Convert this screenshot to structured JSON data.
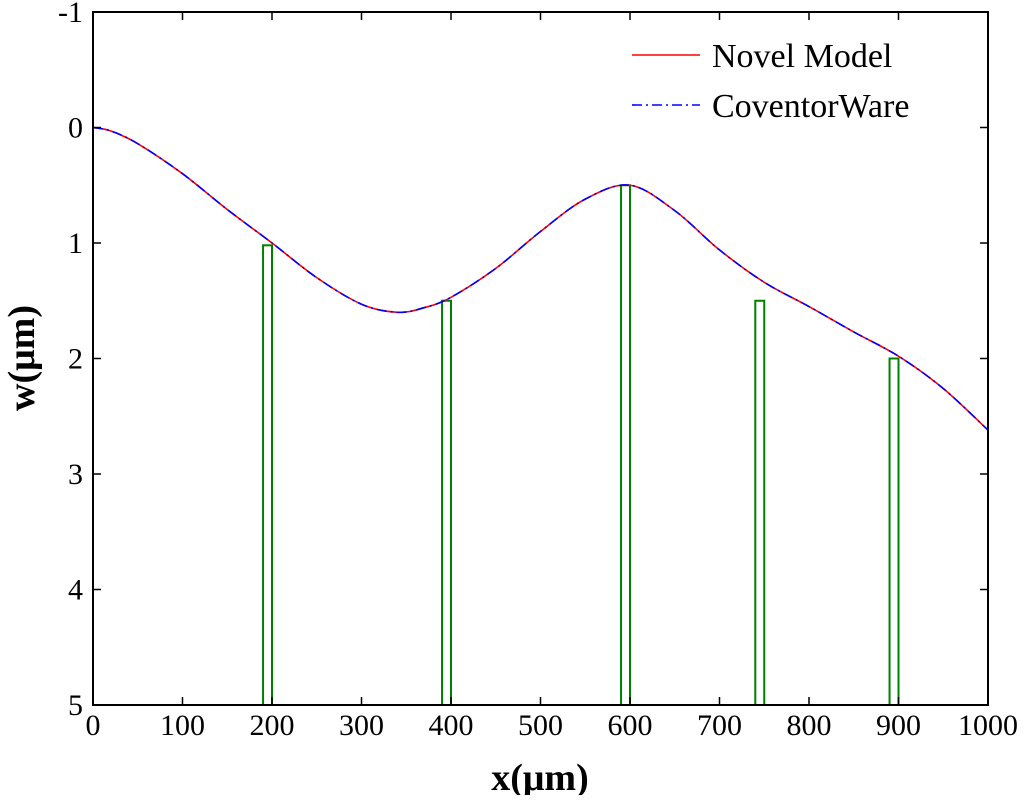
{
  "chart_data": {
    "type": "line",
    "title": "",
    "xlabel": "x(μm)",
    "ylabel": "w(μm)",
    "xlim": [
      0,
      1000
    ],
    "ylim": [
      -1,
      5
    ],
    "y_inverted": true,
    "grid": false,
    "legend_position": "top-right",
    "x_ticks": [
      0,
      100,
      200,
      300,
      400,
      500,
      600,
      700,
      800,
      900,
      1000
    ],
    "y_ticks": [
      -1,
      0,
      1,
      2,
      3,
      4,
      5
    ],
    "series": [
      {
        "name": "Novel Model",
        "color": "#ff0000",
        "line_style": "solid",
        "x": [
          0,
          20,
          50,
          100,
          150,
          200,
          250,
          300,
          340,
          370,
          400,
          450,
          500,
          550,
          600,
          650,
          700,
          750,
          800,
          850,
          900,
          950,
          1000
        ],
        "y": [
          0,
          0.03,
          0.14,
          0.4,
          0.71,
          1.0,
          1.3,
          1.53,
          1.6,
          1.56,
          1.47,
          1.22,
          0.9,
          0.62,
          0.5,
          0.72,
          1.06,
          1.34,
          1.55,
          1.77,
          1.98,
          2.26,
          2.62
        ]
      },
      {
        "name": "CoventorWare",
        "color": "#0000ff",
        "line_style": "dashdot",
        "x": [
          0,
          20,
          50,
          100,
          150,
          200,
          250,
          300,
          340,
          370,
          400,
          450,
          500,
          550,
          600,
          650,
          700,
          750,
          800,
          850,
          900,
          950,
          1000
        ],
        "y": [
          0,
          0.03,
          0.14,
          0.4,
          0.71,
          1.0,
          1.3,
          1.53,
          1.6,
          1.56,
          1.47,
          1.22,
          0.9,
          0.62,
          0.5,
          0.72,
          1.06,
          1.34,
          1.55,
          1.77,
          1.98,
          2.26,
          2.62
        ]
      }
    ],
    "supports": {
      "color": "#008000",
      "items": [
        {
          "x_start": 190,
          "x_end": 200,
          "top": 1.02
        },
        {
          "x_start": 390,
          "x_end": 400,
          "top": 1.5
        },
        {
          "x_start": 590,
          "x_end": 600,
          "top": 0.5
        },
        {
          "x_start": 740,
          "x_end": 750,
          "top": 1.5
        },
        {
          "x_start": 890,
          "x_end": 900,
          "top": 2.0
        }
      ]
    }
  }
}
